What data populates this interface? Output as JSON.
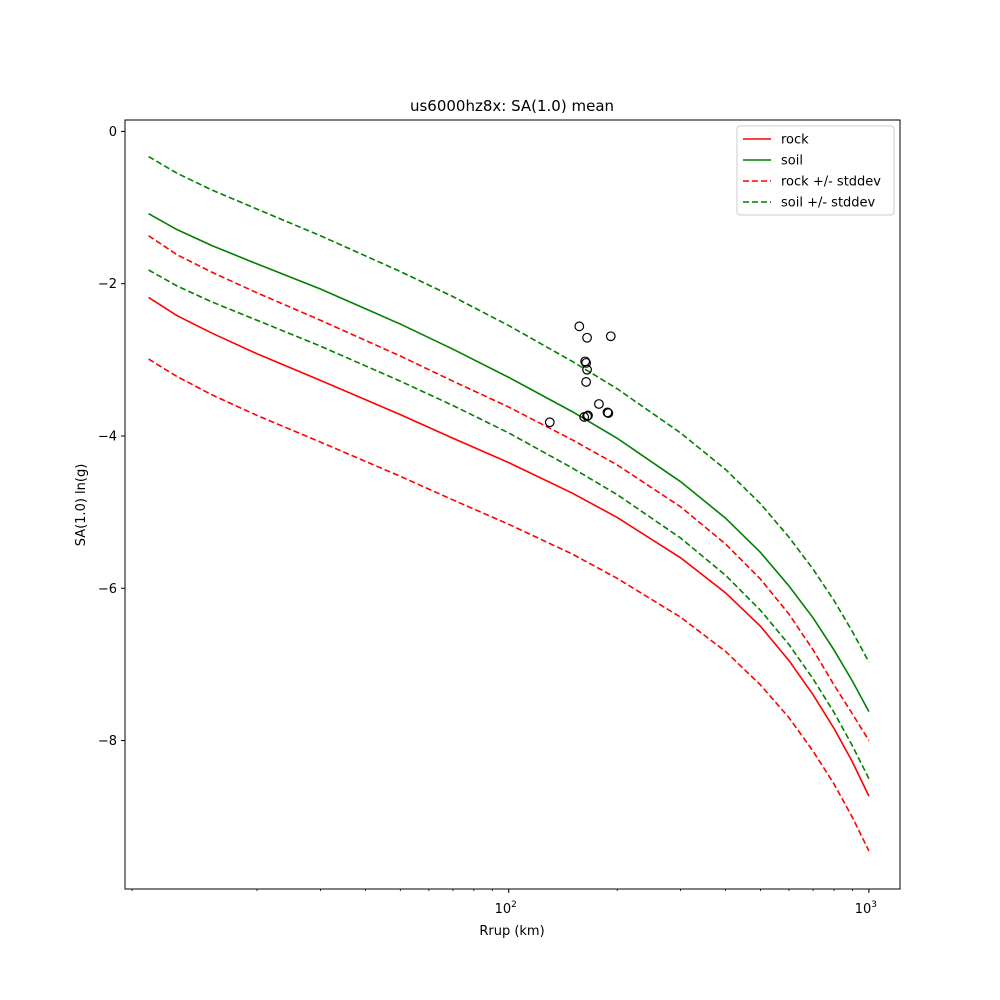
{
  "chart_data": {
    "type": "line",
    "title": "us6000hz8x: SA(1.0) mean",
    "xlabel": "Rrup (km)",
    "ylabel": "SA(1.0) ln(g)",
    "xscale": "log",
    "xlim": [
      8.6,
      1220
    ],
    "ylim": [
      -9.95,
      0.15
    ],
    "xticks": [
      {
        "value": 100,
        "base": "10",
        "exp": "2"
      },
      {
        "value": 1000,
        "base": "10",
        "exp": "3"
      }
    ],
    "yticks": [
      {
        "value": 0,
        "label": "0"
      },
      {
        "value": -2,
        "label": "−2"
      },
      {
        "value": -4,
        "label": "−4"
      },
      {
        "value": -6,
        "label": "−6"
      },
      {
        "value": -8,
        "label": "−8"
      }
    ],
    "grid": false,
    "legend_position": "top-right",
    "x": [
      10,
      12,
      15,
      20,
      30,
      50,
      70,
      100,
      150,
      200,
      300,
      400,
      500,
      600,
      700,
      800,
      900,
      1000
    ],
    "series": [
      {
        "name": "rock",
        "style": "solid",
        "color": "#ff0000",
        "values": [
          -2.18,
          -2.42,
          -2.65,
          -2.92,
          -3.27,
          -3.72,
          -4.03,
          -4.35,
          -4.75,
          -5.07,
          -5.6,
          -6.06,
          -6.5,
          -6.95,
          -7.4,
          -7.84,
          -8.28,
          -8.73
        ]
      },
      {
        "name": "soil",
        "style": "solid",
        "color": "#008000",
        "values": [
          -1.08,
          -1.29,
          -1.5,
          -1.74,
          -2.07,
          -2.53,
          -2.86,
          -3.23,
          -3.68,
          -4.03,
          -4.6,
          -5.08,
          -5.53,
          -5.97,
          -6.39,
          -6.81,
          -7.22,
          -7.62
        ]
      },
      {
        "name": "rock +/- stddev",
        "style": "dashed",
        "color": "#ff0000",
        "values": [
          -1.37,
          -1.62,
          -1.85,
          -2.12,
          -2.48,
          -2.95,
          -3.28,
          -3.62,
          -4.05,
          -4.38,
          -4.93,
          -5.42,
          -5.88,
          -6.34,
          -6.81,
          -7.27,
          -7.65,
          -8.0
        ]
      },
      {
        "name": "",
        "style": "dashed",
        "color": "#ff0000",
        "values": [
          -2.99,
          -3.22,
          -3.46,
          -3.73,
          -4.08,
          -4.53,
          -4.84,
          -5.16,
          -5.55,
          -5.87,
          -6.38,
          -6.83,
          -7.27,
          -7.7,
          -8.14,
          -8.57,
          -9.01,
          -9.45
        ]
      },
      {
        "name": "soil +/- stddev",
        "style": "dashed",
        "color": "#008000",
        "values": [
          -0.33,
          -0.55,
          -0.77,
          -1.02,
          -1.37,
          -1.84,
          -2.17,
          -2.55,
          -3.02,
          -3.38,
          -3.96,
          -4.44,
          -4.89,
          -5.33,
          -5.75,
          -6.16,
          -6.57,
          -6.97
        ]
      },
      {
        "name": "",
        "style": "dashed",
        "color": "#008000",
        "values": [
          -1.82,
          -2.03,
          -2.24,
          -2.48,
          -2.82,
          -3.28,
          -3.6,
          -3.96,
          -4.42,
          -4.77,
          -5.34,
          -5.83,
          -6.29,
          -6.74,
          -7.19,
          -7.63,
          -8.07,
          -8.5
        ]
      }
    ],
    "scatter": [
      {
        "x": 130,
        "y": -3.82
      },
      {
        "x": 157,
        "y": -2.56
      },
      {
        "x": 162,
        "y": -3.75
      },
      {
        "x": 165,
        "y": -3.74
      },
      {
        "x": 166,
        "y": -3.73
      },
      {
        "x": 163,
        "y": -3.02
      },
      {
        "x": 164,
        "y": -3.04
      },
      {
        "x": 165,
        "y": -3.13
      },
      {
        "x": 164,
        "y": -3.29
      },
      {
        "x": 165,
        "y": -2.71
      },
      {
        "x": 178,
        "y": -3.58
      },
      {
        "x": 188,
        "y": -3.69
      },
      {
        "x": 189,
        "y": -3.7
      },
      {
        "x": 192,
        "y": -2.69
      }
    ]
  }
}
